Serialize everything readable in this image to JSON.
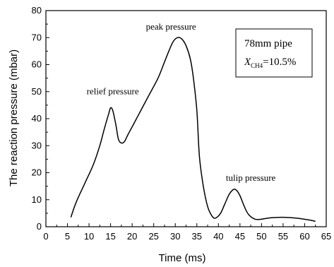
{
  "chart_data": {
    "type": "line",
    "xlabel": "Time (ms)",
    "ylabel": "The reaction pressure (mbar)",
    "xlim": [
      0,
      65
    ],
    "ylim": [
      0,
      80
    ],
    "xticks": [
      0,
      5,
      10,
      15,
      20,
      25,
      30,
      35,
      40,
      45,
      50,
      55,
      60,
      65
    ],
    "yticks": [
      0,
      10,
      20,
      30,
      40,
      50,
      60,
      70,
      80
    ],
    "grid": false,
    "legend_box": {
      "line1": "78mm pipe",
      "line2_prefix": "X",
      "line2_sub": "CH4",
      "line2_suffix": "=10.5%",
      "placement": "top-right"
    },
    "series": [
      {
        "x": [
          5.8,
          7,
          9,
          11,
          12.5,
          13.5,
          14.5,
          15.0,
          15.5,
          16.2,
          16.8,
          17.5,
          18.2,
          19,
          20,
          22,
          24,
          26,
          27.5,
          28.5,
          29.5,
          30.5,
          31.5,
          32.5,
          33.5,
          34.2,
          35.0,
          35.6,
          36.5,
          37.5,
          38.5,
          39.3,
          40.5,
          41.5,
          42.5,
          43.5,
          44.2,
          45,
          46,
          47,
          48.5,
          50,
          52,
          55,
          58,
          61,
          62.5
        ],
        "y": [
          3.5,
          9,
          16,
          23,
          30,
          36,
          41.5,
          44,
          43,
          38,
          32.5,
          31,
          31.5,
          34,
          37,
          43,
          49,
          55,
          61,
          65,
          68.5,
          70,
          69.5,
          67,
          62,
          55,
          43,
          26,
          15,
          7.5,
          4,
          3.2,
          5,
          8.5,
          12,
          13.8,
          13.5,
          11.5,
          7.5,
          4.5,
          2.8,
          2.8,
          3.3,
          3.5,
          3.2,
          2.5,
          2
        ]
      }
    ],
    "annotations": [
      {
        "text": "peak pressure",
        "x": 29,
        "y": 73
      },
      {
        "text": "relief pressure",
        "x": 15.5,
        "y": 49
      },
      {
        "text": "tulip pressure",
        "x": 47.5,
        "y": 17
      }
    ]
  }
}
